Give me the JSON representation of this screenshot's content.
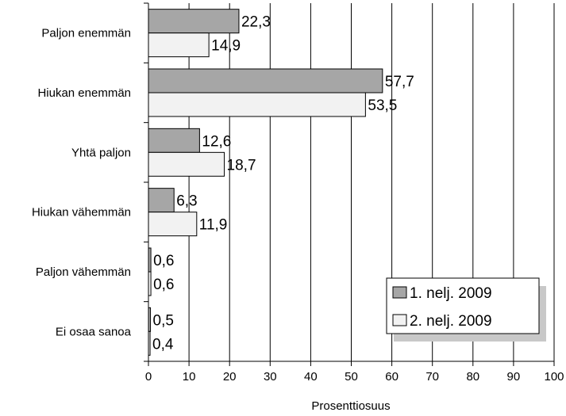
{
  "chart_data": {
    "type": "bar",
    "orientation": "horizontal",
    "categories": [
      "Paljon enemmän",
      "Hiukan enemmän",
      "Yhtä paljon",
      "Hiukan vähemmän",
      "Paljon vähemmän",
      "Ei osaa sanoa"
    ],
    "series": [
      {
        "name": "1. nelj. 2009",
        "values": [
          22.3,
          57.7,
          12.6,
          6.3,
          0.6,
          0.5
        ],
        "labels": [
          "22,3",
          "57,7",
          "12,6",
          "6,3",
          "0,6",
          "0,5"
        ],
        "color": "#a6a6a6"
      },
      {
        "name": "2. nelj. 2009",
        "values": [
          14.9,
          53.5,
          18.7,
          11.9,
          0.6,
          0.4
        ],
        "labels": [
          "14,9",
          "53,5",
          "18,7",
          "11,9",
          "0,6",
          "0,4"
        ],
        "color": "#f2f2f2"
      }
    ],
    "xlabel": "Prosenttiosuus",
    "xlim": [
      0,
      100
    ],
    "xticks": [
      0,
      10,
      20,
      30,
      40,
      50,
      60,
      70,
      80,
      90,
      100
    ],
    "grid": "vertical",
    "legend_position": "bottom-right"
  }
}
